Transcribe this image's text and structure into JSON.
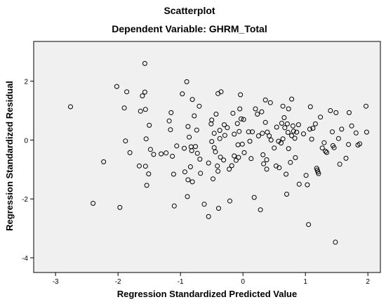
{
  "chart_data": {
    "type": "scatter",
    "title": "Scatterplot",
    "subtitle": "Dependent Variable: GHRM_Total",
    "xlabel": "Regression Standardized Predicted Value",
    "ylabel": "Regression Standardized Residual",
    "xlim": [
      -3.35,
      2.2
    ],
    "ylim": [
      -4.5,
      3.35
    ],
    "xticks": [
      -3,
      -2,
      -1,
      0,
      1,
      2
    ],
    "yticks": [
      2,
      0,
      -2,
      -4
    ],
    "xtick_labels": [
      "-3",
      "-2",
      "-1",
      "0",
      "1",
      "2"
    ],
    "ytick_labels": [
      "2",
      "0",
      "-2",
      "-4"
    ],
    "grid": false,
    "plot_background": "#f0f0f0",
    "points": [
      [
        -2.76,
        1.13
      ],
      [
        -2.23,
        -0.74
      ],
      [
        -2.4,
        -2.15
      ],
      [
        -2.02,
        1.82
      ],
      [
        -1.97,
        -2.29
      ],
      [
        -1.9,
        1.09
      ],
      [
        -1.86,
        1.64
      ],
      [
        -1.88,
        -0.03
      ],
      [
        -1.81,
        -0.43
      ],
      [
        -1.64,
        0.98
      ],
      [
        -1.66,
        -0.88
      ],
      [
        -1.61,
        1.5
      ],
      [
        -1.57,
        2.6
      ],
      [
        -1.57,
        1.63
      ],
      [
        -1.56,
        1.04
      ],
      [
        -1.56,
        -0.89
      ],
      [
        -1.55,
        0.04
      ],
      [
        -1.54,
        -1.54
      ],
      [
        -1.5,
        0.5
      ],
      [
        -1.51,
        -1.15
      ],
      [
        -1.48,
        -0.32
      ],
      [
        -1.43,
        -0.49
      ],
      [
        -1.31,
        -0.47
      ],
      [
        -1.23,
        -0.44
      ],
      [
        -1.18,
        0.65
      ],
      [
        -1.16,
        0.35
      ],
      [
        -1.15,
        0.93
      ],
      [
        -1.13,
        -0.55
      ],
      [
        -1.11,
        -1.16
      ],
      [
        -1.1,
        -2.24
      ],
      [
        -1.06,
        -0.2
      ],
      [
        -0.97,
        1.57
      ],
      [
        -0.94,
        -0.28
      ],
      [
        -0.93,
        -1.08
      ],
      [
        -0.9,
        1.98
      ],
      [
        -0.89,
        -1.92
      ],
      [
        -0.88,
        0.46
      ],
      [
        -0.88,
        -1.35
      ],
      [
        -0.86,
        0.1
      ],
      [
        -0.84,
        -0.91
      ],
      [
        -0.83,
        -0.23
      ],
      [
        -0.82,
        -0.36
      ],
      [
        -0.81,
        1.38
      ],
      [
        -0.81,
        -1.42
      ],
      [
        -0.78,
        0.82
      ],
      [
        -0.76,
        -0.22
      ],
      [
        -0.74,
        0.34
      ],
      [
        -0.73,
        -0.45
      ],
      [
        -0.7,
        1.15
      ],
      [
        -0.69,
        -0.65
      ],
      [
        -0.68,
        -1.13
      ],
      [
        -0.62,
        -2.18
      ],
      [
        -0.55,
        -0.78
      ],
      [
        -0.55,
        -2.6
      ],
      [
        -0.51,
        0.55
      ],
      [
        -0.5,
        0.68
      ],
      [
        -0.5,
        -0.05
      ],
      [
        -0.48,
        -1.32
      ],
      [
        -0.46,
        0.23
      ],
      [
        -0.46,
        -0.26
      ],
      [
        -0.44,
        -0.4
      ],
      [
        -0.43,
        0.88
      ],
      [
        -0.41,
        -0.88
      ],
      [
        -0.4,
        1.58
      ],
      [
        -0.4,
        -1.06
      ],
      [
        -0.39,
        -2.32
      ],
      [
        -0.37,
        0.05
      ],
      [
        -0.37,
        0.33
      ],
      [
        -0.36,
        -0.58
      ],
      [
        -0.35,
        1.64
      ],
      [
        -0.31,
        -0.68
      ],
      [
        -0.3,
        0.52
      ],
      [
        -0.29,
        0.16
      ],
      [
        -0.25,
        0.42
      ],
      [
        -0.22,
        -0.99
      ],
      [
        -0.21,
        -2.07
      ],
      [
        -0.18,
        -0.87
      ],
      [
        -0.16,
        0.91
      ],
      [
        -0.14,
        -0.54
      ],
      [
        -0.14,
        0.2
      ],
      [
        -0.11,
        -0.69
      ],
      [
        -0.09,
        0.56
      ],
      [
        -0.08,
        -0.16
      ],
      [
        -0.07,
        -0.59
      ],
      [
        -0.06,
        0.29
      ],
      [
        -0.05,
        1.06
      ],
      [
        -0.04,
        1.54
      ],
      [
        -0.03,
        0.72
      ],
      [
        -0.01,
        -0.14
      ],
      [
        0.01,
        0.7
      ],
      [
        0.02,
        -0.43
      ],
      [
        0.09,
        0.28
      ],
      [
        0.11,
        -0.04
      ],
      [
        0.13,
        -0.63
      ],
      [
        0.15,
        0.28
      ],
      [
        0.18,
        -1.95
      ],
      [
        0.2,
        1.06
      ],
      [
        0.23,
        0.88
      ],
      [
        0.25,
        0.14
      ],
      [
        0.28,
        -2.37
      ],
      [
        0.3,
        0.96
      ],
      [
        0.31,
        0.23
      ],
      [
        0.32,
        -0.5
      ],
      [
        0.33,
        -0.81
      ],
      [
        0.36,
        0.6
      ],
      [
        0.36,
        1.36
      ],
      [
        0.38,
        -0.67
      ],
      [
        0.38,
        -0.99
      ],
      [
        0.39,
        0.27
      ],
      [
        0.42,
        0.14
      ],
      [
        0.44,
        1.27
      ],
      [
        0.45,
        0.0
      ],
      [
        0.5,
        -0.27
      ],
      [
        0.53,
        -0.88
      ],
      [
        0.54,
        0.44
      ],
      [
        0.57,
        -0.04
      ],
      [
        0.58,
        -0.94
      ],
      [
        0.61,
        -0.1
      ],
      [
        0.62,
        0.57
      ],
      [
        0.64,
        1.15
      ],
      [
        0.64,
        0.04
      ],
      [
        0.66,
        0.76
      ],
      [
        0.67,
        0.42
      ],
      [
        0.69,
        -1.16
      ],
      [
        0.7,
        -1.84
      ],
      [
        0.71,
        0.55
      ],
      [
        0.72,
        0.26
      ],
      [
        0.73,
        1.06
      ],
      [
        0.73,
        -0.29
      ],
      [
        0.76,
        -0.76
      ],
      [
        0.78,
        1.39
      ],
      [
        0.78,
        0.15
      ],
      [
        0.8,
        0.48
      ],
      [
        0.81,
        0.3
      ],
      [
        0.83,
        0.06
      ],
      [
        0.84,
        -0.6
      ],
      [
        0.86,
        0.27
      ],
      [
        0.89,
        0.52
      ],
      [
        0.9,
        -1.5
      ],
      [
        0.97,
        0.21
      ],
      [
        1.01,
        -1.2
      ],
      [
        1.03,
        -1.52
      ],
      [
        1.05,
        -2.87
      ],
      [
        1.07,
        0.37
      ],
      [
        1.08,
        1.13
      ],
      [
        1.1,
        0.03
      ],
      [
        1.12,
        0.4
      ],
      [
        1.16,
        0.55
      ],
      [
        1.18,
        -0.96
      ],
      [
        1.19,
        -1.02
      ],
      [
        1.2,
        -1.08
      ],
      [
        1.21,
        -1.14
      ],
      [
        1.24,
        0.78
      ],
      [
        1.27,
        -0.27
      ],
      [
        1.3,
        -0.09
      ],
      [
        1.32,
        -0.38
      ],
      [
        1.34,
        -0.42
      ],
      [
        1.4,
        1.0
      ],
      [
        1.43,
        0.28
      ],
      [
        1.44,
        -0.19
      ],
      [
        1.46,
        -0.26
      ],
      [
        1.48,
        -3.47
      ],
      [
        1.49,
        0.93
      ],
      [
        1.53,
        0.05
      ],
      [
        1.55,
        -0.82
      ],
      [
        1.58,
        0.37
      ],
      [
        1.65,
        -0.62
      ],
      [
        1.69,
        -0.15
      ],
      [
        1.7,
        0.93
      ],
      [
        1.74,
        0.48
      ],
      [
        1.81,
        0.24
      ],
      [
        1.84,
        -0.17
      ],
      [
        1.87,
        -0.13
      ],
      [
        1.97,
        1.15
      ],
      [
        1.98,
        0.27
      ]
    ]
  }
}
